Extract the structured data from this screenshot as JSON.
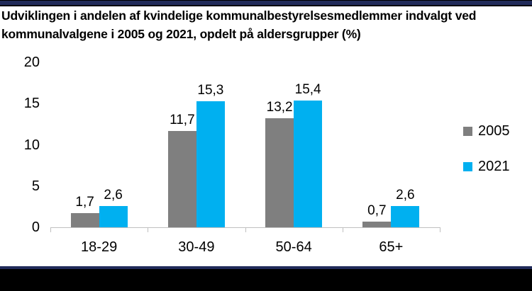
{
  "chart_data": {
    "type": "bar",
    "title": "Udviklingen i andelen af kvindelige kommunalbestyrelsesmedlemmer indvalgt ved kommunalvalgene i 2005 og 2021, opdelt på aldersgrupper (%)",
    "title_lines": [
      "Udviklingen i andelen af kvindelige kommunalbestyrelsesmedlemmer indvalgt ved",
      "kommunalvalgene i 2005 og 2021, opdelt på aldersgrupper (%)"
    ],
    "categories": [
      "18-29",
      "30-49",
      "50-64",
      "65+"
    ],
    "series": [
      {
        "name": "2005",
        "color": "#7F7F7F",
        "values": [
          1.7,
          11.7,
          13.2,
          0.7
        ],
        "labels": [
          "1,7",
          "11,7",
          "13,2",
          "0,7"
        ]
      },
      {
        "name": "2021",
        "color": "#00B0F0",
        "values": [
          2.6,
          15.3,
          15.4,
          2.6
        ],
        "labels": [
          "2,6",
          "15,3",
          "15,4",
          "2,6"
        ]
      }
    ],
    "xlabel": "",
    "ylabel": "",
    "y_axis": {
      "min": 0,
      "max": 20,
      "ticks": [
        0,
        5,
        10,
        15,
        20
      ],
      "tick_labels": [
        "0",
        "5",
        "10",
        "15",
        "20"
      ]
    },
    "grid": false,
    "legend_position": "right",
    "data_labels": true
  },
  "colors": {
    "accent_navy": "#212B5A",
    "black": "#000000",
    "axis_line": "#BFBFBF",
    "text": "#000000",
    "background": "#FFFFFF"
  }
}
